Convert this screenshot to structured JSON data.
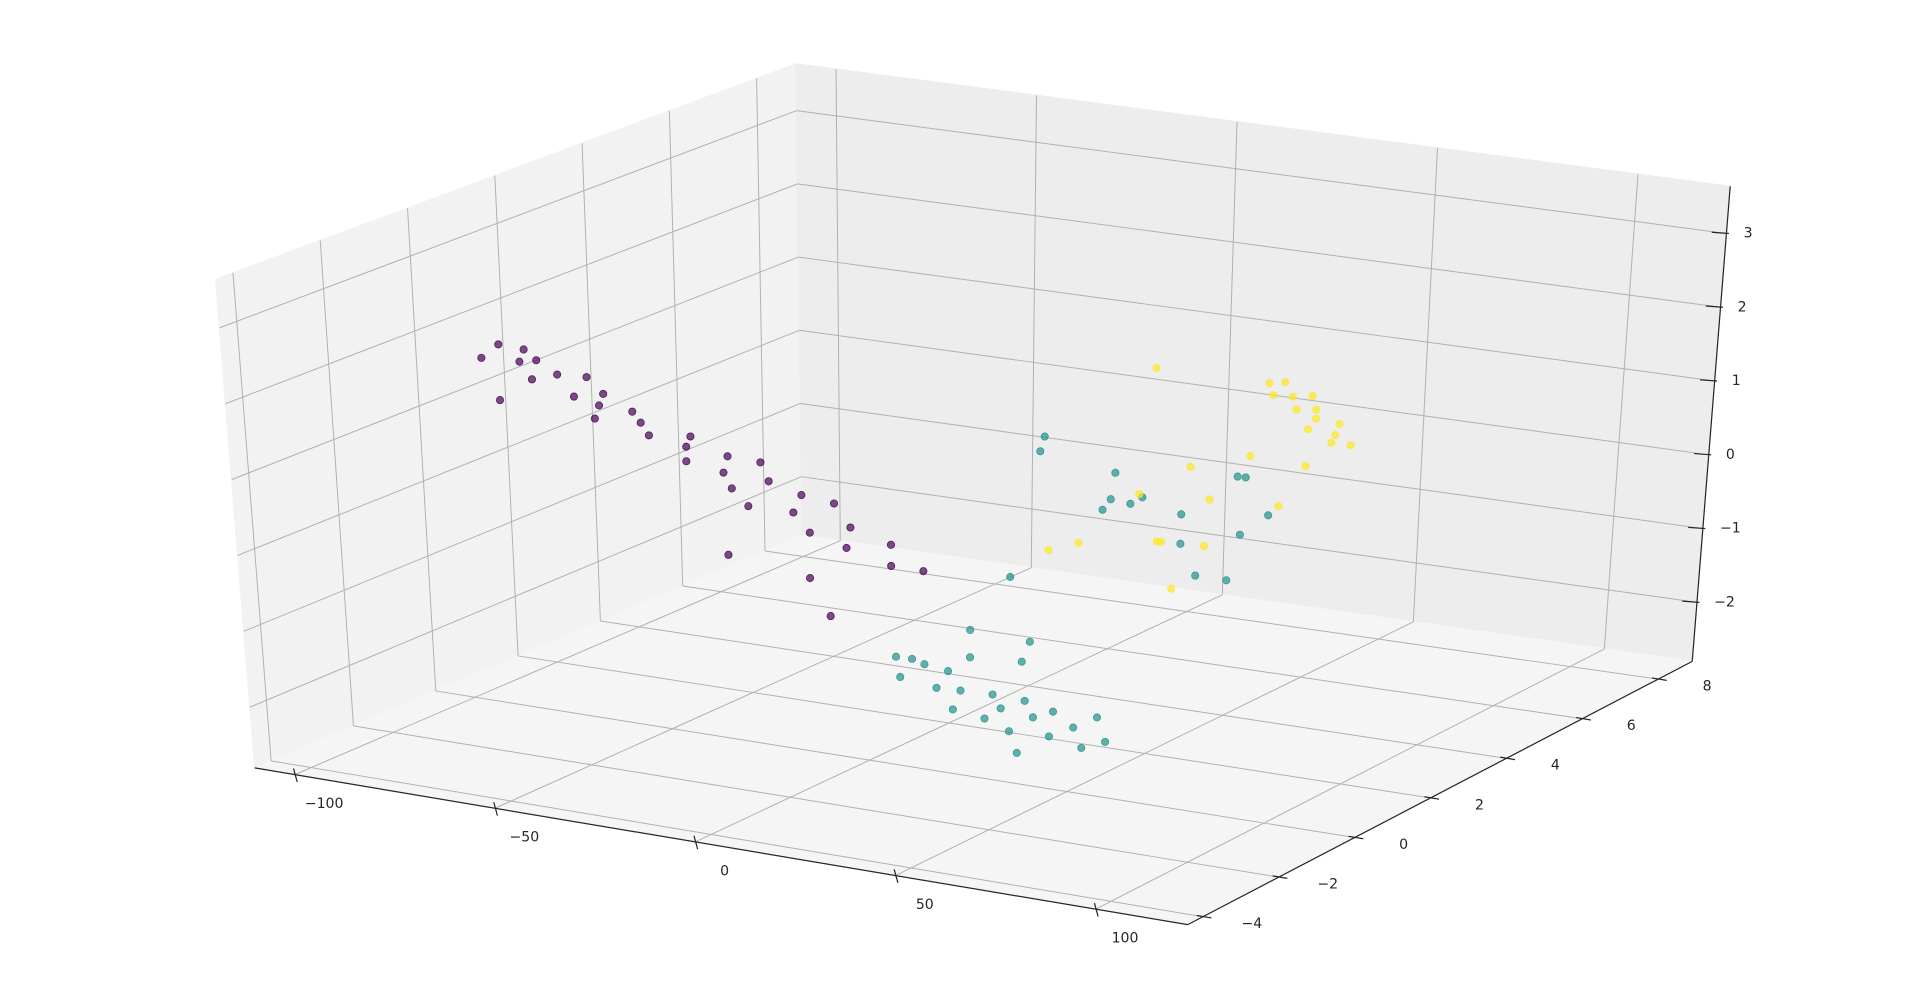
{
  "chart_data": {
    "type": "scatter3d",
    "xlim": [
      -110,
      123
    ],
    "ylim": [
      -4.4,
      8.9
    ],
    "zlim": [
      -2.8,
      3.64
    ],
    "xticks": [
      {
        "value": -100,
        "label": "−100"
      },
      {
        "value": -50,
        "label": "−50"
      },
      0,
      50,
      100
    ],
    "yticks": [
      {
        "value": -4,
        "label": "−4"
      },
      {
        "value": -2,
        "label": "−2"
      },
      0,
      2,
      4,
      6,
      8
    ],
    "zticks": [
      {
        "value": -2,
        "label": "−2"
      },
      {
        "value": -1,
        "label": "−1"
      },
      0,
      1,
      2,
      3
    ],
    "grid": true,
    "series": [
      {
        "color": "#440154",
        "x": [
          -92,
          -91,
          -88,
          -88,
          -86,
          -84,
          -80,
          -78,
          -74,
          -71,
          -68,
          -66,
          -63,
          -60,
          -57,
          -52,
          -48,
          -45,
          -42,
          -38,
          -35,
          -33,
          -30,
          -27,
          -24,
          -20,
          -20,
          -17,
          -14,
          -10,
          -6,
          -5,
          -2,
          3,
          5,
          8,
          13
        ],
        "y": [
          0.2,
          -0.3,
          0.4,
          -0.2,
          0.1,
          0.3,
          -0.2,
          0.2,
          0.5,
          -0.1,
          0.3,
          0.0,
          -0.4,
          0.2,
          0.1,
          -0.2,
          0.4,
          0.0,
          -0.3,
          0.3,
          -0.1,
          0.6,
          -0.4,
          0.2,
          -0.6,
          0.3,
          -1.5,
          -0.2,
          0.5,
          -0.5,
          0.1,
          -1.0,
          -0.4,
          0.2,
          -1.5,
          -0.3,
          0.0
        ],
        "z": [
          1.92,
          1.86,
          1.84,
          1.3,
          1.76,
          1.75,
          1.64,
          1.63,
          1.56,
          1.46,
          1.43,
          1.36,
          1.3,
          1.28,
          1.18,
          1.12,
          1.0,
          0.98,
          0.88,
          0.84,
          0.74,
          0.73,
          0.64,
          0.62,
          0.5,
          0.47,
          0.1,
          0.38,
          0.36,
          0.24,
          0.2,
          -0.2,
          0.08,
          0.02,
          -0.5,
          -0.1,
          -0.2
        ]
      },
      {
        "color": "#21918c",
        "x": [
          26,
          28,
          30,
          33,
          35,
          38,
          42,
          45,
          48,
          50,
          52,
          55,
          58,
          60,
          63,
          66,
          70,
          72,
          75,
          78,
          62,
          15,
          20,
          28,
          30,
          10,
          -17,
          -14,
          -2,
          0,
          -3,
          8,
          10,
          15,
          18,
          25,
          30,
          27,
          32,
          40,
          35
        ],
        "y": [
          -2.0,
          -1.8,
          -2.3,
          -2.0,
          -1.6,
          -2.2,
          -2.0,
          -2.5,
          -1.8,
          -2.2,
          -2.0,
          -1.7,
          -2.4,
          -2.0,
          -1.8,
          -2.2,
          -2.0,
          -1.6,
          -2.3,
          -2.0,
          -2.6,
          1.0,
          0.5,
          1.2,
          0.8,
          2.5,
          6.0,
          5.6,
          6.2,
          5.8,
          6.4,
          6.0,
          5.5,
          6.3,
          6.0,
          5.7,
          6.0,
          6.5,
          6.2,
          6.0,
          5.8
        ],
        "z": [
          -0.74,
          -0.8,
          -0.9,
          -0.78,
          -0.95,
          -1.0,
          -1.05,
          -1.15,
          -1.1,
          -1.3,
          -1.2,
          -1.15,
          -1.35,
          -1.25,
          -1.2,
          -1.4,
          -1.3,
          -1.25,
          -1.45,
          -1.42,
          -1.55,
          -1.2,
          -1.4,
          -1.3,
          -1.45,
          -0.9,
          -0.07,
          -0.15,
          -0.85,
          -0.88,
          -0.55,
          -0.7,
          -0.65,
          -0.95,
          -1.25,
          -1.55,
          -1.65,
          -0.4,
          -0.3,
          -0.7,
          -0.95
        ]
      },
      {
        "color": "#fde725",
        "x": [
          39,
          40,
          42,
          44,
          46,
          47,
          49,
          51,
          52,
          54,
          56,
          57,
          59,
          10.7,
          16,
          -15.6,
          -10,
          42.5,
          7.2,
          20,
          25,
          30,
          18,
          22,
          14,
          45
        ],
        "y": [
          6.0,
          6.3,
          5.8,
          6.1,
          6.4,
          5.9,
          6.2,
          6.0,
          5.7,
          6.3,
          6.0,
          5.8,
          6.1,
          6.0,
          6.0,
          6.0,
          6.2,
          6.0,
          6.0,
          6.0,
          6.0,
          6.5,
          5.5,
          6.2,
          5.8,
          6.4
        ],
        "z": [
          1.07,
          1.02,
          0.98,
          0.9,
          0.85,
          0.8,
          0.74,
          0.68,
          0.62,
          0.56,
          0.5,
          0.45,
          0.36,
          1.06,
          -1.87,
          -1.59,
          -1.5,
          -0.56,
          -0.66,
          -0.2,
          -0.6,
          -0.1,
          -1.1,
          -1.3,
          -1.2,
          -0.1
        ]
      }
    ]
  }
}
